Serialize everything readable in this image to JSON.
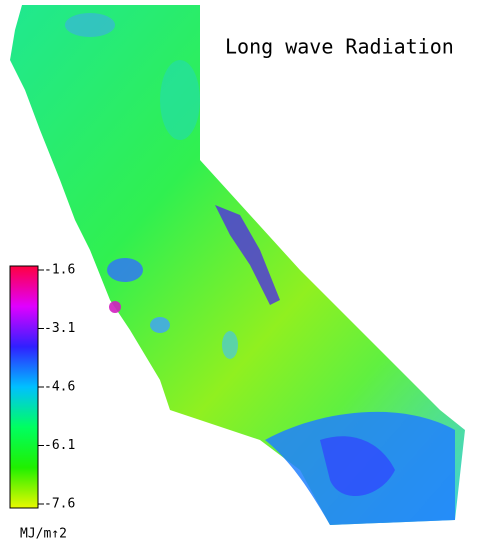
{
  "title": "Long wave Radiation",
  "colorbar": {
    "range": [
      -7.6,
      -1.6
    ],
    "ticks": [
      -1.6,
      -3.1,
      -4.6,
      -6.1,
      -7.6
    ],
    "unit": "MJ/m↑2",
    "colors": [
      "#ff0040",
      "#e000ff",
      "#3020ff",
      "#00c0ff",
      "#00ff60",
      "#20f000",
      "#e8f800"
    ]
  }
}
